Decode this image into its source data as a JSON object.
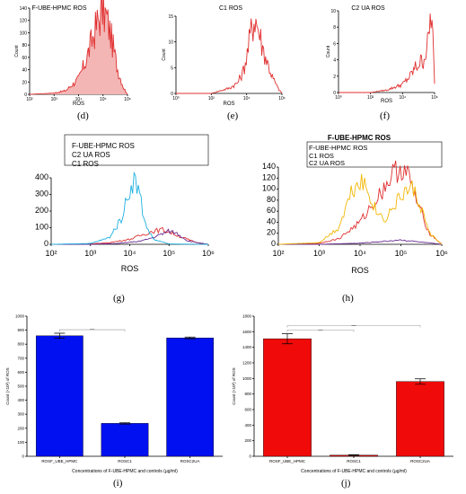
{
  "chart_data": [
    {
      "id": "d",
      "type": "area",
      "caption": "(d)",
      "title": "F-UBE-HPMC ROS",
      "xlabel": "ROS",
      "ylabel": "Count",
      "x_scale": "log",
      "xticks": [
        "10²",
        "10³",
        "10⁴",
        "10⁵",
        "10⁶"
      ],
      "ylim": [
        0,
        140
      ],
      "yticks": [
        "0",
        "20",
        "40",
        "60",
        "80",
        "100",
        "120",
        "140"
      ],
      "series": [
        {
          "color": "#e03030",
          "fill": "#f4b5b5",
          "x": [
            100,
            1000,
            3000,
            10000,
            20000,
            40000,
            70000,
            100000,
            150000,
            250000,
            400000,
            700000,
            1000000
          ],
          "y": [
            0,
            2,
            6,
            25,
            55,
            95,
            125,
            138,
            120,
            80,
            40,
            10,
            0
          ]
        }
      ]
    },
    {
      "id": "e",
      "type": "line",
      "caption": "(e)",
      "title": "C1 ROS",
      "xlabel": "ROS",
      "ylabel": "Count",
      "x_scale": "log",
      "xticks": [
        "10⁰",
        "10²",
        "10⁴",
        "10⁶"
      ],
      "ylim": [
        0,
        15
      ],
      "yticks": [
        "0",
        "5",
        "10",
        "15"
      ],
      "series": [
        {
          "color": "#e03030",
          "x": [
            1,
            100,
            1000,
            3000,
            6000,
            10000,
            20000,
            30000,
            50000,
            80000,
            150000,
            300000,
            600000,
            1000000
          ],
          "y": [
            0,
            0,
            1,
            2,
            4,
            7,
            13,
            15,
            12,
            9,
            6,
            3,
            1,
            0
          ]
        }
      ]
    },
    {
      "id": "f",
      "type": "line",
      "caption": "(f)",
      "title": "C2 UA ROS",
      "xlabel": "ROS",
      "ylabel": "Count",
      "x_scale": "log",
      "xticks": [
        "10⁰",
        "10²",
        "10⁴",
        "10⁶"
      ],
      "ylim": [
        0,
        10
      ],
      "yticks": [
        "0",
        "2",
        "4",
        "6",
        "8",
        "10"
      ],
      "series": [
        {
          "color": "#e03030",
          "x": [
            1,
            100,
            1000,
            10000,
            30000,
            60000,
            100000,
            200000,
            400000,
            600000,
            800000,
            1000000
          ],
          "y": [
            0,
            0,
            0.3,
            1,
            2,
            3,
            3.5,
            4,
            6,
            10,
            6,
            1
          ]
        }
      ]
    },
    {
      "id": "g",
      "type": "line",
      "caption": "(g)",
      "title": "F-UBE-HPMC ROS",
      "xlabel": "ROS",
      "ylabel": "",
      "x_scale": "log",
      "xticks": [
        "10²",
        "10³",
        "10⁴",
        "10⁵",
        "10⁶"
      ],
      "ylim": [
        0,
        400
      ],
      "yticks": [
        "0",
        "100",
        "200",
        "300",
        "400"
      ],
      "legend": [
        "F-UBE-HPMC ROS",
        "C2 UA ROS",
        "C1 ROS"
      ],
      "series": [
        {
          "name": "F-UBE-HPMC ROS",
          "color": "#e03030",
          "x": [
            100,
            1000,
            3000,
            10000,
            20000,
            40000,
            70000,
            100000,
            200000,
            500000,
            1000000
          ],
          "y": [
            0,
            2,
            10,
            30,
            55,
            80,
            88,
            75,
            45,
            10,
            0
          ]
        },
        {
          "name": "C2 UA ROS",
          "color": "#6a2c91",
          "x": [
            100,
            1000,
            5000,
            20000,
            50000,
            100000,
            150000,
            300000,
            1000000
          ],
          "y": [
            0,
            0,
            5,
            20,
            50,
            80,
            70,
            20,
            0
          ]
        },
        {
          "name": "C1 ROS",
          "color": "#1fb0e0",
          "x": [
            100,
            1000,
            3000,
            6000,
            10000,
            13000,
            17000,
            25000,
            40000,
            100000,
            1000000
          ],
          "y": [
            0,
            5,
            40,
            150,
            330,
            390,
            330,
            120,
            30,
            2,
            0
          ]
        }
      ]
    },
    {
      "id": "h",
      "type": "line",
      "caption": "(h)",
      "title": "F-UBE-HPMC ROS",
      "xlabel": "ROS",
      "ylabel": "",
      "x_scale": "log",
      "xticks": [
        "10²",
        "10³",
        "10⁴",
        "10⁵",
        "10⁶"
      ],
      "ylim": [
        0,
        140
      ],
      "yticks": [
        "0",
        "20",
        "40",
        "60",
        "80",
        "100",
        "120",
        "140"
      ],
      "legend": [
        "F-UBE-HPMC ROS",
        "C1 ROS",
        "C2 UA ROS"
      ],
      "series": [
        {
          "name": "F-UBE-HPMC ROS",
          "color": "#e03030",
          "x": [
            100,
            1000,
            3000,
            10000,
            30000,
            60000,
            100000,
            150000,
            250000,
            500000,
            1000000
          ],
          "y": [
            0,
            2,
            10,
            40,
            90,
            125,
            140,
            125,
            75,
            20,
            0
          ]
        },
        {
          "name": "C1 ROS",
          "color": "#6a2c91",
          "x": [
            100,
            1000,
            10000,
            50000,
            100000,
            300000,
            1000000
          ],
          "y": [
            0,
            0,
            2,
            6,
            8,
            4,
            0
          ]
        },
        {
          "name": "C2 UA ROS",
          "color": "#f2b705",
          "x": [
            100,
            1000,
            3000,
            6000,
            10000,
            15000,
            25000,
            40000,
            70000,
            120000,
            200000,
            300000,
            500000,
            1000000
          ],
          "y": [
            0,
            3,
            30,
            95,
            120,
            100,
            60,
            45,
            70,
            95,
            100,
            70,
            20,
            0
          ]
        }
      ]
    },
    {
      "id": "i",
      "type": "bar",
      "caption": "(i)",
      "xlabel": "Concentrations of F-UBE-HPMC and controls (µg/ml)",
      "ylabel": "Count (×10³) of ROS",
      "categories": [
        "ROSF_UBE_HPMC",
        "ROSC1",
        "ROSC2UA"
      ],
      "values": [
        860,
        235,
        845
      ],
      "errors": [
        18,
        5,
        6
      ],
      "bar_color": "#0010f0",
      "ylim": [
        0,
        1000
      ],
      "yticks": [
        "0",
        "100",
        "200",
        "300",
        "400",
        "500",
        "600",
        "700",
        "800",
        "900",
        "1000"
      ],
      "significance": [
        "—"
      ]
    },
    {
      "id": "j",
      "type": "bar",
      "caption": "(j)",
      "xlabel": "Concentrations of F-UBE-HPMC and controls (µg/ml)",
      "ylabel": "Count (×10³) of ROS",
      "categories": [
        "ROSF_UBE_HPMC",
        "ROSC1",
        "ROSC2UA"
      ],
      "values": [
        1510,
        15,
        960
      ],
      "errors": [
        65,
        5,
        35
      ],
      "bar_color": "#f00a0a",
      "ylim": [
        0,
        1800
      ],
      "yticks": [
        "0",
        "200",
        "400",
        "600",
        "800",
        "1000",
        "1200",
        "1400",
        "1600",
        "1800"
      ],
      "significance": [
        "—",
        "—"
      ]
    }
  ]
}
